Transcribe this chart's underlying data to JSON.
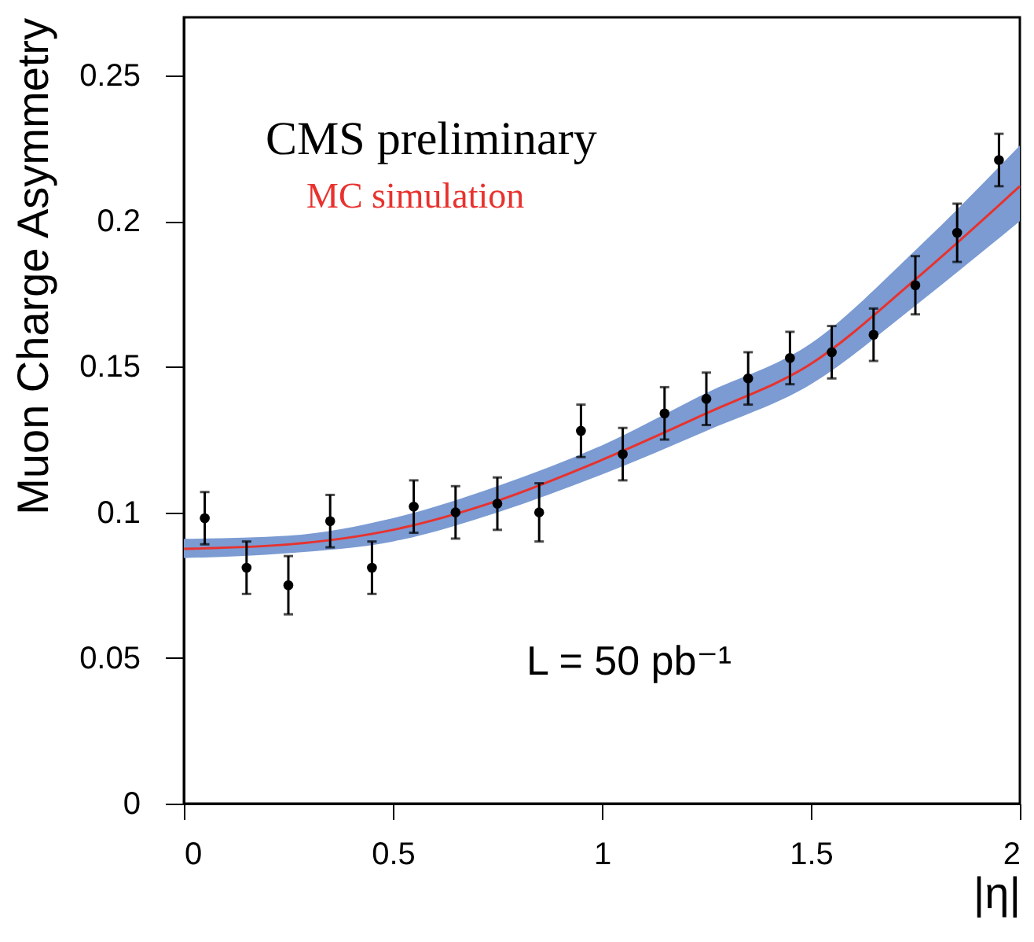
{
  "chart_data": {
    "type": "scatter",
    "ylabel": "Muon Charge Asymmetry",
    "xlabel": "|η|",
    "annotations": [
      "CMS preliminary",
      "L = 50 pb⁻¹"
    ],
    "xlim": [
      0,
      2
    ],
    "xticks": [
      0,
      0.5,
      1,
      1.5,
      2
    ],
    "ylim": [
      0,
      0.27
    ],
    "yticks": [
      0,
      0.05,
      0.1,
      0.15,
      0.2,
      0.25
    ],
    "grid": false,
    "series": [
      {
        "type": "scatter",
        "color": "#000000",
        "marker": "circle",
        "x": [
          0.05,
          0.15,
          0.25,
          0.35,
          0.45,
          0.55,
          0.65,
          0.75,
          0.85,
          0.95,
          1.05,
          1.15,
          1.25,
          1.35,
          1.45,
          1.55,
          1.65,
          1.75,
          1.85,
          1.95
        ],
        "values": [
          0.098,
          0.081,
          0.075,
          0.097,
          0.081,
          0.102,
          0.1,
          0.103,
          0.1,
          0.128,
          0.12,
          0.134,
          0.139,
          0.146,
          0.153,
          0.155,
          0.161,
          0.178,
          0.196,
          0.221
        ],
        "errors": [
          0.009,
          0.009,
          0.01,
          0.009,
          0.009,
          0.009,
          0.009,
          0.009,
          0.01,
          0.009,
          0.009,
          0.009,
          0.009,
          0.009,
          0.009,
          0.009,
          0.009,
          0.01,
          0.01,
          0.009
        ]
      },
      {
        "type": "line",
        "name": "MC simulation",
        "color": "#e8322e",
        "x": [
          0,
          0.25,
          0.5,
          0.75,
          1,
          1.25,
          1.5,
          1.75,
          2
        ],
        "values": [
          0.0875,
          0.089,
          0.094,
          0.104,
          0.118,
          0.134,
          0.151,
          0.18,
          0.212
        ],
        "lower": [
          0.0843,
          0.086,
          0.09,
          0.1,
          0.113,
          0.128,
          0.144,
          0.171,
          0.2
        ],
        "upper": [
          0.0909,
          0.092,
          0.098,
          0.109,
          0.123,
          0.141,
          0.158,
          0.19,
          0.226
        ]
      }
    ]
  }
}
